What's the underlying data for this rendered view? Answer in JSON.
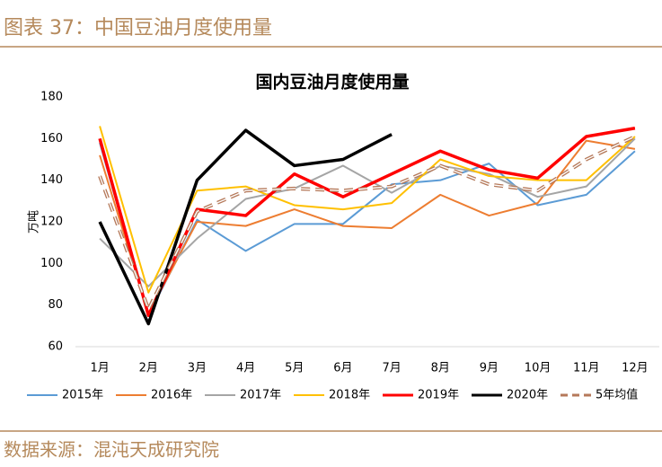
{
  "header": {
    "title": "图表 37：中国豆油月度使用量"
  },
  "chart_data": {
    "type": "line",
    "title": "国内豆油月度使用量",
    "y_label": "万吨",
    "categories": [
      "1月",
      "2月",
      "3月",
      "4月",
      "5月",
      "6月",
      "7月",
      "8月",
      "9月",
      "10月",
      "11月",
      "12月"
    ],
    "ylim": [
      60,
      180
    ],
    "yticks": [
      60,
      80,
      100,
      120,
      140,
      160,
      180
    ],
    "series": [
      {
        "name": "2015年",
        "color": "#5b9bd5",
        "width": 2,
        "values": [
          158,
          75,
          121,
          106,
          119,
          119,
          138,
          140,
          148,
          128,
          133,
          154
        ]
      },
      {
        "name": "2016年",
        "color": "#ed7d31",
        "width": 2,
        "values": [
          152,
          76,
          120,
          118,
          126,
          118,
          117,
          133,
          123,
          129,
          159,
          155
        ]
      },
      {
        "name": "2017年",
        "color": "#a5a5a5",
        "width": 2,
        "values": [
          112,
          89,
          112,
          131,
          136,
          147,
          134,
          147,
          143,
          132,
          137,
          160
        ]
      },
      {
        "name": "2018年",
        "color": "#ffc000",
        "width": 2,
        "values": [
          166,
          86,
          135,
          137,
          128,
          126,
          129,
          150,
          142,
          140,
          140,
          161
        ]
      },
      {
        "name": "2019年",
        "color": "#ff0000",
        "width": 3.5,
        "values": [
          160,
          75,
          126,
          123,
          143,
          132,
          143,
          154,
          145,
          141,
          161,
          165
        ]
      },
      {
        "name": "2020年",
        "color": "#000000",
        "width": 3.5,
        "values": [
          120,
          71,
          140,
          164,
          147,
          150,
          162,
          null,
          null,
          null,
          null,
          null
        ]
      },
      {
        "name": "5年均值",
        "color": "#b5795a",
        "width": 4,
        "style": "dashed",
        "values": [
          142,
          78,
          125,
          135,
          136,
          135,
          137,
          147,
          138,
          135,
          150,
          161
        ]
      }
    ]
  },
  "footer": {
    "source": "数据来源：混沌天成研究院"
  }
}
